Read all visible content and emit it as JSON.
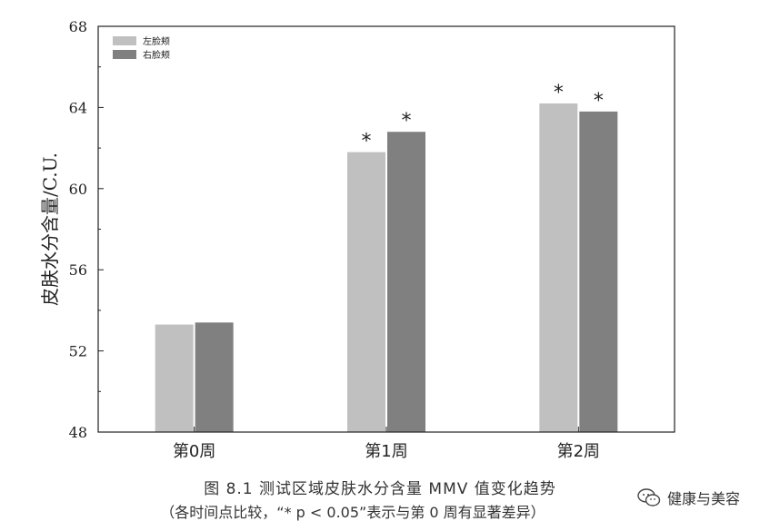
{
  "chart_data": {
    "type": "bar",
    "categories": [
      "第0周",
      "第1周",
      "第2周"
    ],
    "series": [
      {
        "name": "左脸颊",
        "values": [
          53.3,
          61.8,
          64.2
        ],
        "color": "#c0c0c0"
      },
      {
        "name": "右脸颊",
        "values": [
          53.4,
          62.8,
          63.8
        ],
        "color": "#808080"
      }
    ],
    "significance": [
      [
        "",
        "*",
        "*"
      ],
      [
        "",
        "*",
        "*"
      ]
    ],
    "ylabel": "皮肤水分含量/C.U.",
    "xlabel": "",
    "ylim": [
      48,
      68
    ],
    "yticks": [
      48,
      52,
      56,
      60,
      64,
      68
    ],
    "grid": false,
    "legend_position": "top-left"
  },
  "caption": {
    "line1": "图 8.1   测试区域皮肤水分含量 MMV 值变化趋势",
    "line2": "（各时间点比较，“* p < 0.05”表示与第 0 周有显著差异）"
  },
  "watermark": {
    "text": "健康与美容",
    "icon": "wechat-icon"
  }
}
